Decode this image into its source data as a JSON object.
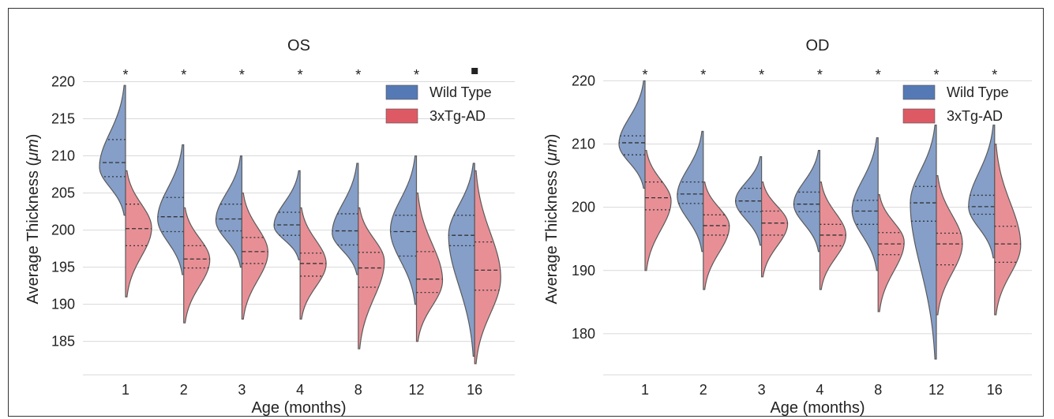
{
  "chart_data": [
    {
      "type": "violin",
      "title": "OS",
      "xlabel": "Age (months)",
      "ylabel_prefix": "Average Thickness (",
      "ylabel_unit": "μm",
      "ylabel_suffix": ")",
      "categories": [
        "1",
        "2",
        "3",
        "4",
        "8",
        "12",
        "16"
      ],
      "yticks": [
        185,
        190,
        195,
        200,
        205,
        210,
        215,
        220
      ],
      "ylim": [
        180.5,
        222.5
      ],
      "significance": [
        "*",
        "*",
        "*",
        "*",
        "*",
        "*",
        "■"
      ],
      "legend": {
        "position": "top-right",
        "entries": [
          "Wild Type",
          "3xTg-AD"
        ]
      },
      "series": [
        {
          "name": "Wild Type",
          "color": "#4c72b0",
          "violins": [
            {
              "min": 202,
              "max": 219.5,
              "q1": 207.2,
              "median": 209.1,
              "q3": 212.2,
              "mode": 208.5,
              "width": 1.0
            },
            {
              "min": 194,
              "max": 211.5,
              "q1": 199.8,
              "median": 201.8,
              "q3": 204.4,
              "mode": 201.5,
              "width": 1.0
            },
            {
              "min": 195,
              "max": 210,
              "q1": 199.9,
              "median": 201.5,
              "q3": 203.5,
              "mode": 201.3,
              "width": 1.0
            },
            {
              "min": 196,
              "max": 208,
              "q1": 199.3,
              "median": 200.7,
              "q3": 202.4,
              "mode": 200.6,
              "width": 1.0
            },
            {
              "min": 194,
              "max": 209,
              "q1": 198.0,
              "median": 199.9,
              "q3": 202.2,
              "mode": 199.6,
              "width": 1.0
            },
            {
              "min": 190,
              "max": 210,
              "q1": 196.5,
              "median": 199.8,
              "q3": 202.0,
              "mode": 200.0,
              "width": 1.0
            },
            {
              "min": 183,
              "max": 209,
              "q1": 197.9,
              "median": 199.3,
              "q3": 202.0,
              "mode": 199.3,
              "width": 1.0
            }
          ]
        },
        {
          "name": "3xTg-AD",
          "color": "#dd5a65",
          "violins": [
            {
              "min": 191,
              "max": 208,
              "q1": 197.9,
              "median": 200.2,
              "q3": 203.5,
              "mode": 200.3,
              "width": 1.0
            },
            {
              "min": 187.5,
              "max": 203,
              "q1": 194.9,
              "median": 196.1,
              "q3": 197.9,
              "mode": 196.0,
              "width": 1.0
            },
            {
              "min": 188,
              "max": 205,
              "q1": 195.5,
              "median": 197.1,
              "q3": 199.0,
              "mode": 197.0,
              "width": 1.0
            },
            {
              "min": 188,
              "max": 203,
              "q1": 193.8,
              "median": 195.5,
              "q3": 196.9,
              "mode": 195.5,
              "width": 1.0
            },
            {
              "min": 184,
              "max": 203,
              "q1": 192.3,
              "median": 194.9,
              "q3": 197.0,
              "mode": 195.8,
              "width": 1.0
            },
            {
              "min": 185,
              "max": 205,
              "q1": 191.6,
              "median": 193.4,
              "q3": 197.1,
              "mode": 193.2,
              "width": 1.0
            },
            {
              "min": 182,
              "max": 208,
              "q1": 191.9,
              "median": 194.6,
              "q3": 198.4,
              "mode": 193.6,
              "width": 1.0
            }
          ]
        }
      ]
    },
    {
      "type": "violin",
      "title": "OD",
      "xlabel": "Age (months)",
      "ylabel_prefix": "Average Thickness (",
      "ylabel_unit": "μm",
      "ylabel_suffix": ")",
      "categories": [
        "1",
        "2",
        "3",
        "4",
        "8",
        "12",
        "16"
      ],
      "yticks": [
        180,
        190,
        200,
        210,
        220
      ],
      "ylim": [
        173.5,
        222.8
      ],
      "significance": [
        "*",
        "*",
        "*",
        "*",
        "*",
        "*",
        "*"
      ],
      "legend": {
        "position": "top-right",
        "entries": [
          "Wild Type",
          "3xTg-AD"
        ]
      },
      "series": [
        {
          "name": "Wild Type",
          "color": "#4c72b0",
          "violins": [
            {
              "min": 203,
              "max": 220,
              "q1": 208.3,
              "median": 210.2,
              "q3": 211.3,
              "mode": 210.0,
              "width": 1.0
            },
            {
              "min": 193,
              "max": 212,
              "q1": 200.6,
              "median": 202.1,
              "q3": 204.0,
              "mode": 201.8,
              "width": 1.0
            },
            {
              "min": 194,
              "max": 208,
              "q1": 199.3,
              "median": 201.0,
              "q3": 203.0,
              "mode": 201.0,
              "width": 1.0
            },
            {
              "min": 193,
              "max": 209,
              "q1": 199.3,
              "median": 200.5,
              "q3": 202.4,
              "mode": 200.5,
              "width": 1.0
            },
            {
              "min": 190,
              "max": 211,
              "q1": 197.3,
              "median": 199.4,
              "q3": 201.1,
              "mode": 199.5,
              "width": 1.0
            },
            {
              "min": 176,
              "max": 213,
              "q1": 197.8,
              "median": 200.7,
              "q3": 203.3,
              "mode": 200.7,
              "width": 1.0
            },
            {
              "min": 192,
              "max": 213,
              "q1": 198.9,
              "median": 200.1,
              "q3": 201.9,
              "mode": 200.1,
              "width": 1.0
            }
          ]
        },
        {
          "name": "3xTg-AD",
          "color": "#dd5a65",
          "violins": [
            {
              "min": 190,
              "max": 209,
              "q1": 199.6,
              "median": 201.5,
              "q3": 204.0,
              "mode": 201.0,
              "width": 1.0
            },
            {
              "min": 187,
              "max": 204,
              "q1": 195.6,
              "median": 197.1,
              "q3": 198.8,
              "mode": 197.0,
              "width": 1.0
            },
            {
              "min": 189,
              "max": 204,
              "q1": 195.6,
              "median": 197.5,
              "q3": 199.4,
              "mode": 197.4,
              "width": 1.0
            },
            {
              "min": 187,
              "max": 204,
              "q1": 193.9,
              "median": 195.6,
              "q3": 197.3,
              "mode": 195.6,
              "width": 1.0
            },
            {
              "min": 183.5,
              "max": 202,
              "q1": 192.5,
              "median": 194.2,
              "q3": 196.0,
              "mode": 194.5,
              "width": 1.0
            },
            {
              "min": 183,
              "max": 205,
              "q1": 190.9,
              "median": 194.2,
              "q3": 195.9,
              "mode": 194.3,
              "width": 1.0
            },
            {
              "min": 183,
              "max": 210,
              "q1": 191.3,
              "median": 194.2,
              "q3": 197.0,
              "mode": 194.0,
              "width": 1.0
            }
          ]
        }
      ]
    }
  ]
}
